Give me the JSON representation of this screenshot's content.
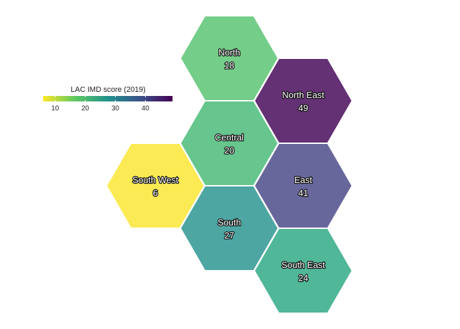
{
  "legend": {
    "title": "LAC IMD score (2019)",
    "ticks": [
      10,
      20,
      30,
      40
    ],
    "domain": [
      6,
      49
    ],
    "gradient": [
      "#fde725",
      "#5ec962",
      "#21918c",
      "#3b528b",
      "#440154"
    ]
  },
  "regions": [
    {
      "name": "North",
      "value": 18,
      "color": "#74cd88"
    },
    {
      "name": "North East",
      "value": 49,
      "color": "#643174"
    },
    {
      "name": "Central",
      "value": 20,
      "color": "#66c68e"
    },
    {
      "name": "East",
      "value": 41,
      "color": "#68679c"
    },
    {
      "name": "South West",
      "value": 6,
      "color": "#fbea53"
    },
    {
      "name": "South",
      "value": 27,
      "color": "#4ea6a3"
    },
    {
      "name": "South East",
      "value": 24,
      "color": "#50b798"
    }
  ]
}
